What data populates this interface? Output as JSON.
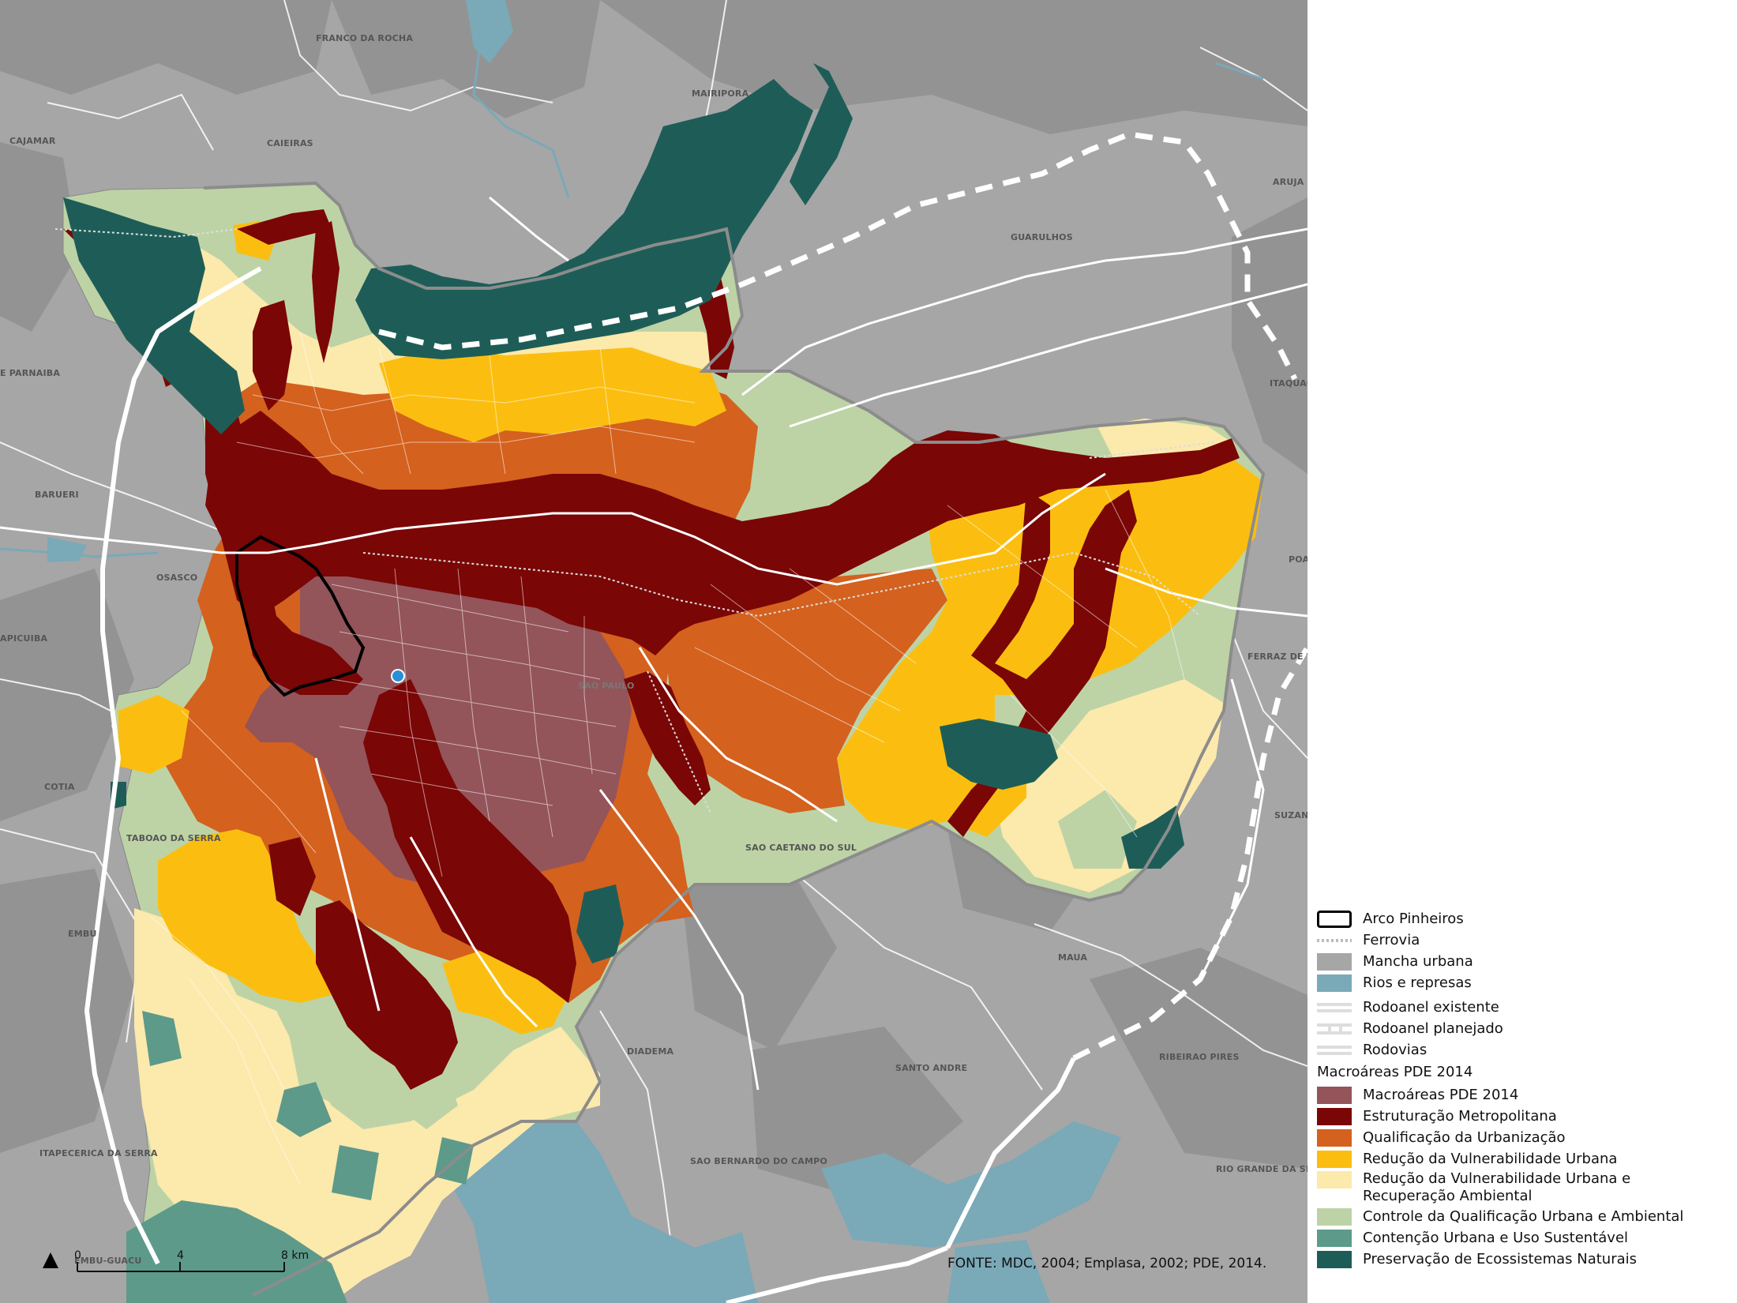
{
  "legend": {
    "items": [
      {
        "label": "Arco Pinheiros",
        "kind": "outline",
        "color": "#000000"
      },
      {
        "label": "Ferrovia",
        "kind": "rail",
        "color": "#bbbbbb"
      },
      {
        "label": "Mancha urbana",
        "kind": "fill",
        "color": "#a6a6a6"
      },
      {
        "label": "Rios e represas",
        "kind": "fill",
        "color": "#7aa9b8"
      },
      {
        "label": "Rodoanel existente",
        "kind": "road",
        "color": "#dddddd"
      },
      {
        "label": "Rodoanel planejado",
        "kind": "road-dash",
        "color": "#dddddd"
      },
      {
        "label": "Rodovias",
        "kind": "road",
        "color": "#dddddd"
      }
    ],
    "section_title": "Macroáreas PDE 2014",
    "macro_items": [
      {
        "label": "Macroáreas PDE 2014",
        "color": "#93545a"
      },
      {
        "label": "Estruturação Metropolitana",
        "color": "#7a0606"
      },
      {
        "label": "Qualificação da Urbanização",
        "color": "#d4611e"
      },
      {
        "label": "Redução da Vulnerabilidade Urbana",
        "color": "#fbbe10"
      },
      {
        "label": "Redução da Vulnerabilidade Urbana e Recuperação Ambiental",
        "color": "#fce9ac"
      },
      {
        "label": "Controle da Qualificação Urbana e Ambiental",
        "color": "#bdd3a6"
      },
      {
        "label": "Contenção Urbana e Uso Sustentável",
        "color": "#5d9a8a"
      },
      {
        "label": "Preservação de Ecossistemas Naturais",
        "color": "#1e5d57"
      }
    ]
  },
  "source": "FONTE: MDC, 2004; Emplasa, 2002; PDE, 2014.",
  "scale": {
    "labels": [
      "0",
      "4",
      "8 km"
    ]
  },
  "cities": [
    "FRANCO DA ROCHA",
    "MAIRIPORA",
    "CAJAMAR",
    "CAIEIRAS",
    "ARUJA",
    "GUARULHOS",
    "E PARNAIBA",
    "ITAQUAQ",
    "BARUERI",
    "OSASCO",
    "APICUIBA",
    "COTIA",
    "TABOAO DA SERRA",
    "EMBU",
    "ITAPECERICA DA SERRA",
    "EMBU-GUACU",
    "DIADEMA",
    "SAO CAETANO DO SUL",
    "SANTO ANDRE",
    "SAO BERNARDO DO CAMPO",
    "MAUA",
    "RIBEIRAO PIRES",
    "RIO GRANDE DA SE",
    "SUZAN",
    "FERRAZ DE V",
    "POA",
    "SAO PAULO"
  ],
  "colors": {
    "background": "#a6a6a6",
    "background_dark": "#8f8f8f",
    "water": "#7aa9b8",
    "road": "#ffffff"
  }
}
